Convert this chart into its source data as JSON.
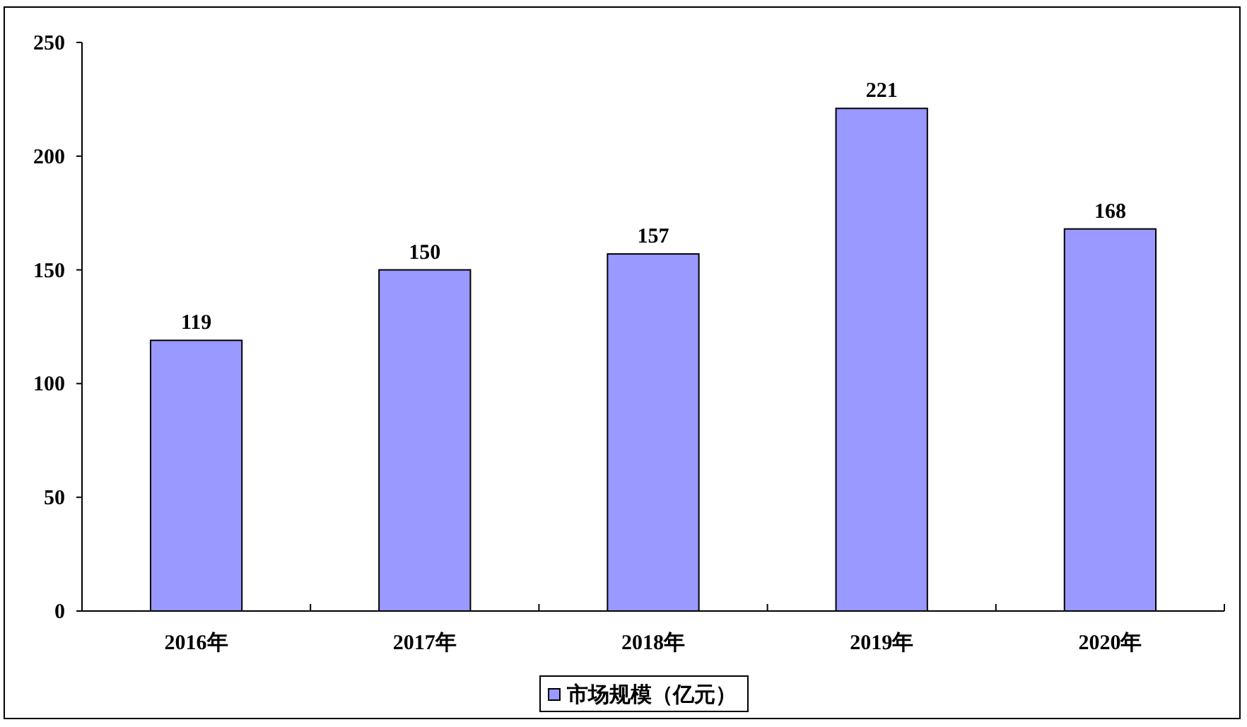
{
  "chart_data": {
    "type": "bar",
    "categories": [
      "2016年",
      "2017年",
      "2018年",
      "2019年",
      "2020年"
    ],
    "series": [
      {
        "name": "市场规模（亿元）",
        "color": "#9999ff",
        "values": [
          119,
          150,
          157,
          221,
          168
        ]
      }
    ],
    "ylim": [
      0,
      250
    ],
    "yticks": [
      0,
      50,
      100,
      150,
      200,
      250
    ],
    "data_labels": true,
    "legend": "bottom",
    "grid": false
  }
}
